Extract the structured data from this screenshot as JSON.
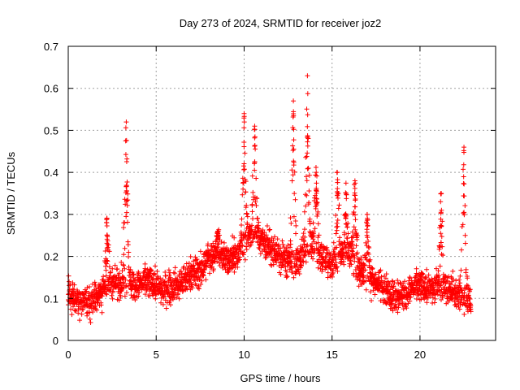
{
  "chart_data": {
    "type": "scatter",
    "title": "Day 273 of 2024, SRMTID for receiver joz2",
    "xlabel": "GPS time / hours",
    "ylabel": "SRMTID / TECUs",
    "xlim": [
      0,
      24.3
    ],
    "ylim": [
      0,
      0.7
    ],
    "xticks": [
      "0",
      "5",
      "10",
      "15",
      "20"
    ],
    "yticks": [
      "0",
      "0.1",
      "0.2",
      "0.3",
      "0.4",
      "0.5",
      "0.6",
      "0.7"
    ],
    "grid": true,
    "marker": "plus",
    "color": "#ff0000",
    "series": [
      {
        "name": "SRMTID",
        "baseline": [
          [
            0.0,
            0.11
          ],
          [
            0.5,
            0.1
          ],
          [
            1.0,
            0.09
          ],
          [
            1.5,
            0.1
          ],
          [
            2.0,
            0.12
          ],
          [
            2.5,
            0.14
          ],
          [
            3.0,
            0.14
          ],
          [
            3.5,
            0.14
          ],
          [
            4.0,
            0.13
          ],
          [
            4.5,
            0.14
          ],
          [
            5.0,
            0.13
          ],
          [
            5.5,
            0.12
          ],
          [
            6.0,
            0.13
          ],
          [
            6.5,
            0.14
          ],
          [
            7.0,
            0.16
          ],
          [
            7.5,
            0.16
          ],
          [
            8.0,
            0.2
          ],
          [
            8.5,
            0.21
          ],
          [
            9.0,
            0.19
          ],
          [
            9.5,
            0.2
          ],
          [
            10.0,
            0.24
          ],
          [
            10.5,
            0.26
          ],
          [
            11.0,
            0.24
          ],
          [
            11.5,
            0.22
          ],
          [
            12.0,
            0.2
          ],
          [
            12.5,
            0.19
          ],
          [
            13.0,
            0.18
          ],
          [
            13.5,
            0.22
          ],
          [
            14.0,
            0.22
          ],
          [
            14.5,
            0.2
          ],
          [
            15.0,
            0.18
          ],
          [
            15.5,
            0.2
          ],
          [
            16.0,
            0.21
          ],
          [
            16.5,
            0.17
          ],
          [
            17.0,
            0.15
          ],
          [
            17.5,
            0.14
          ],
          [
            18.0,
            0.12
          ],
          [
            18.5,
            0.11
          ],
          [
            19.0,
            0.11
          ],
          [
            19.5,
            0.12
          ],
          [
            20.0,
            0.13
          ],
          [
            20.5,
            0.12
          ],
          [
            21.0,
            0.13
          ],
          [
            21.5,
            0.12
          ],
          [
            22.0,
            0.11
          ],
          [
            22.5,
            0.1
          ],
          [
            22.9,
            0.09
          ]
        ],
        "spread": 0.045,
        "spikes": [
          {
            "x": 3.3,
            "peak": 0.52
          },
          {
            "x": 10.0,
            "peak": 0.54
          },
          {
            "x": 10.6,
            "peak": 0.51
          },
          {
            "x": 12.8,
            "peak": 0.57
          },
          {
            "x": 13.6,
            "peak": 0.63
          },
          {
            "x": 14.1,
            "peak": 0.4
          },
          {
            "x": 15.3,
            "peak": 0.4
          },
          {
            "x": 15.8,
            "peak": 0.35
          },
          {
            "x": 16.3,
            "peak": 0.38
          },
          {
            "x": 21.2,
            "peak": 0.35
          },
          {
            "x": 22.5,
            "peak": 0.46
          },
          {
            "x": 2.2,
            "peak": 0.29
          },
          {
            "x": 8.5,
            "peak": 0.26
          },
          {
            "x": 17.0,
            "peak": 0.3
          }
        ],
        "x_end": 22.9
      }
    ]
  }
}
